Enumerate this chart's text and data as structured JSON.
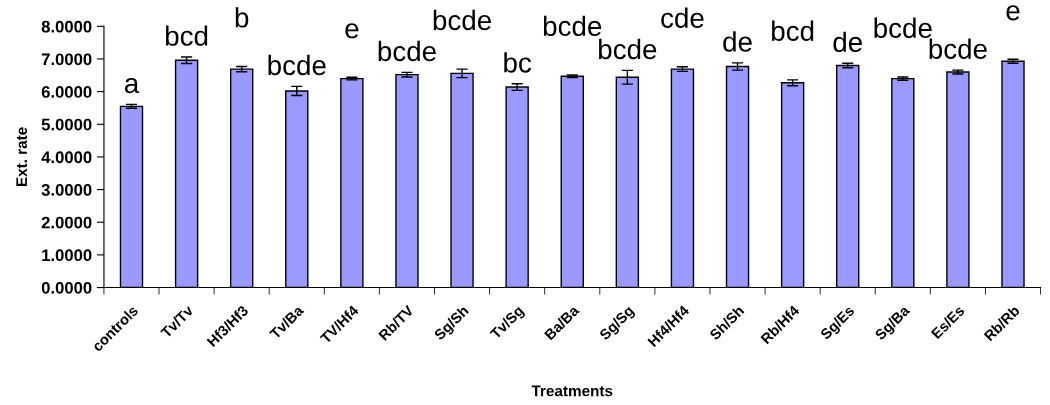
{
  "chart_data": {
    "type": "bar",
    "xlabel": "Treatments",
    "ylabel": "Ext. rate",
    "categories": [
      "controls",
      "Tv/Tv",
      "Hf3/Hf3",
      "Tv/Ba",
      "TV/Hf4",
      "Rb/TV",
      "Sg/Sh",
      "Tv/Sg",
      "Ba/Ba",
      "Sg/Sg",
      "Hf4/Hf4",
      "Sh/Sh",
      "Rb/Hf4",
      "Sg/Es",
      "Sg/Ba",
      "Es/Es",
      "Rb/Rb"
    ],
    "values": [
      5.55,
      6.96,
      6.69,
      6.02,
      6.4,
      6.52,
      6.56,
      6.14,
      6.47,
      6.44,
      6.69,
      6.77,
      6.27,
      6.8,
      6.4,
      6.6,
      6.93
    ],
    "errors": [
      0.06,
      0.1,
      0.08,
      0.14,
      0.04,
      0.07,
      0.13,
      0.1,
      0.04,
      0.21,
      0.07,
      0.11,
      0.09,
      0.07,
      0.05,
      0.06,
      0.06
    ],
    "color": "#9999ff",
    "ylim": [
      0,
      8
    ],
    "yticks": [
      {
        "value": 0,
        "label": "0.0000"
      },
      {
        "value": 1,
        "label": "1.0000"
      },
      {
        "value": 2,
        "label": "2.0000"
      },
      {
        "value": 3,
        "label": "3.0000"
      },
      {
        "value": 4,
        "label": "4.0000"
      },
      {
        "value": 5,
        "label": "5.0000"
      },
      {
        "value": 6,
        "label": "6.0000"
      },
      {
        "value": 7,
        "label": "7.0000"
      },
      {
        "value": 8,
        "label": "8.0000"
      }
    ],
    "grid": false,
    "legend": false,
    "annotations": [
      "a",
      "bcd",
      "b",
      "bcde",
      "e",
      "bcde",
      "bcde",
      "bc",
      "bcde",
      "bcde",
      "cde",
      "de",
      "bcd",
      "de",
      "bcde",
      "bcde",
      "e"
    ]
  }
}
